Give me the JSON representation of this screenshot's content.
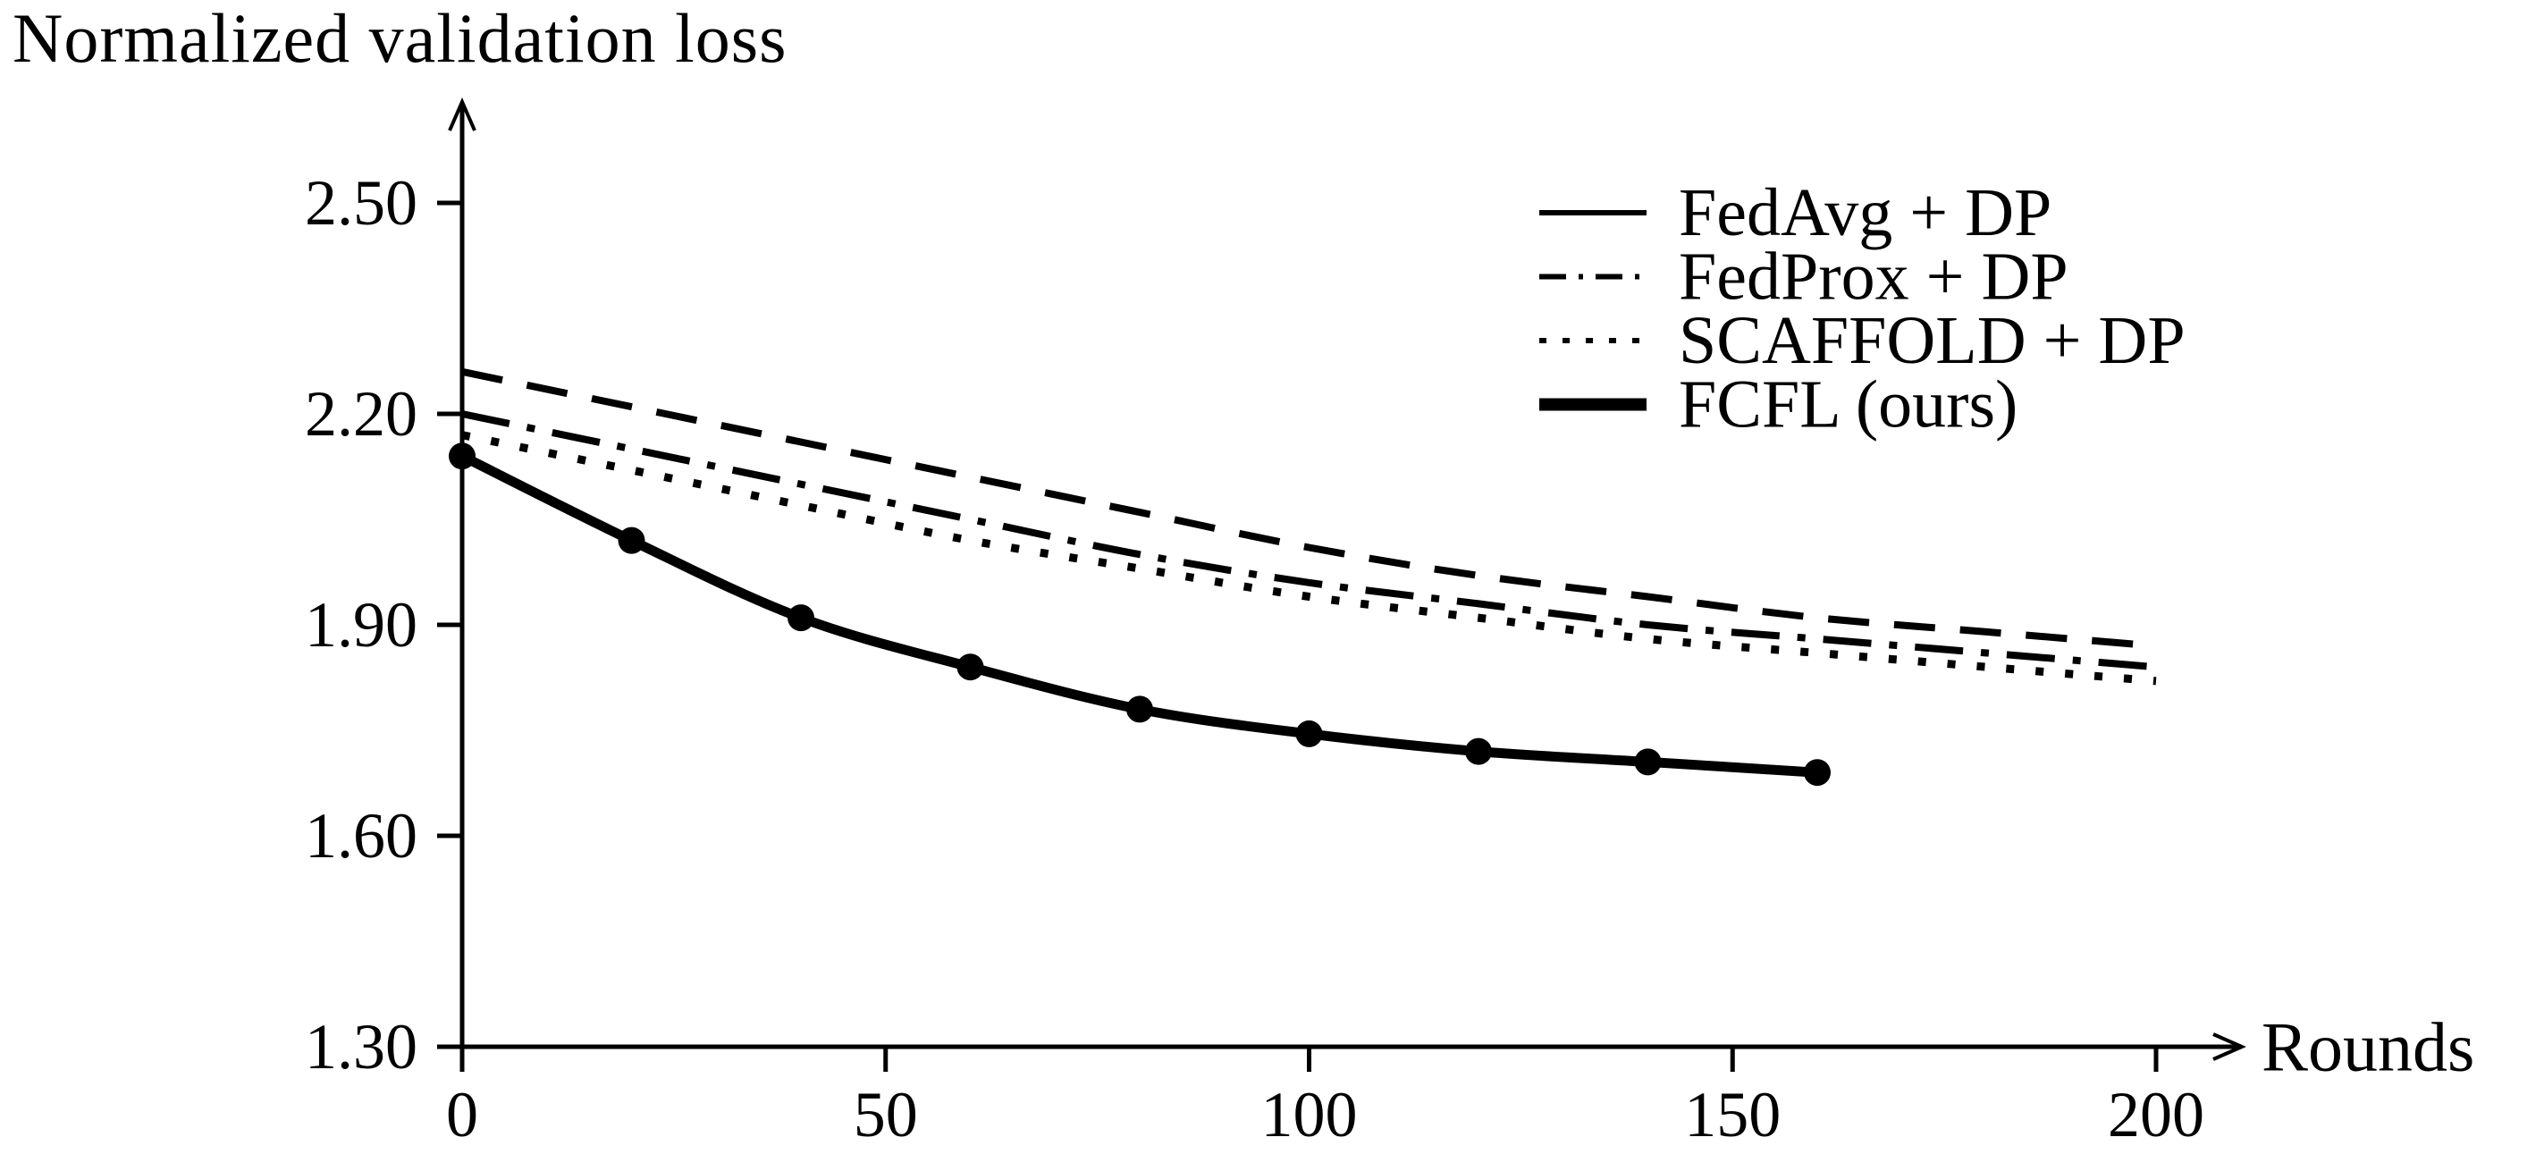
{
  "figure": {
    "background_color": "#ffffff",
    "ink_color": "#000000"
  },
  "chart_data": {
    "type": "line",
    "title": "Normalized validation loss",
    "xlabel": "Rounds",
    "ylabel": "Normalized validation loss",
    "xlim": [
      0,
      200
    ],
    "ylim": [
      1.3,
      2.5
    ],
    "grid": false,
    "legend_position": "top-right",
    "x_ticks": [
      {
        "value": 0,
        "label": "0"
      },
      {
        "value": 50,
        "label": "50"
      },
      {
        "value": 100,
        "label": "100"
      },
      {
        "value": 150,
        "label": "150"
      },
      {
        "value": 200,
        "label": "200"
      }
    ],
    "y_ticks": [
      {
        "value": 2.5,
        "label": "2.50"
      },
      {
        "value": 2.2,
        "label": "2.20"
      },
      {
        "value": 1.9,
        "label": "1.90"
      },
      {
        "value": 1.6,
        "label": "1.60"
      },
      {
        "value": 1.3,
        "label": "1.30"
      }
    ],
    "series": [
      {
        "name": "FedAvg + DP",
        "legend_style": "solid-thin",
        "plot_style": "dashed",
        "markers": false,
        "x": [
          0,
          20,
          40,
          60,
          80,
          100,
          120,
          140,
          160,
          180,
          200
        ],
        "values": [
          2.26,
          2.21,
          2.16,
          2.11,
          2.06,
          2.01,
          1.97,
          1.94,
          1.91,
          1.89,
          1.87
        ]
      },
      {
        "name": "FedProx + DP",
        "legend_style": "dash-dot",
        "plot_style": "dash-dot",
        "markers": false,
        "x": [
          0,
          20,
          40,
          60,
          80,
          100,
          120,
          140,
          160,
          180,
          200
        ],
        "values": [
          2.2,
          2.15,
          2.1,
          2.05,
          2.0,
          1.96,
          1.93,
          1.9,
          1.88,
          1.86,
          1.84
        ]
      },
      {
        "name": "SCAFFOLD + DP",
        "legend_style": "dotted",
        "plot_style": "dotted",
        "markers": false,
        "x": [
          0,
          20,
          40,
          60,
          80,
          100,
          120,
          140,
          160,
          180,
          200
        ],
        "values": [
          2.17,
          2.12,
          2.07,
          2.02,
          1.98,
          1.94,
          1.91,
          1.88,
          1.86,
          1.84,
          1.82
        ]
      },
      {
        "name": "FCFL (ours)",
        "legend_style": "solid-thick",
        "plot_style": "solid-thick",
        "markers": true,
        "x": [
          0,
          20,
          40,
          60,
          80,
          100,
          120,
          140,
          160
        ],
        "values": [
          2.14,
          2.02,
          1.91,
          1.84,
          1.78,
          1.745,
          1.72,
          1.705,
          1.69
        ]
      }
    ]
  }
}
